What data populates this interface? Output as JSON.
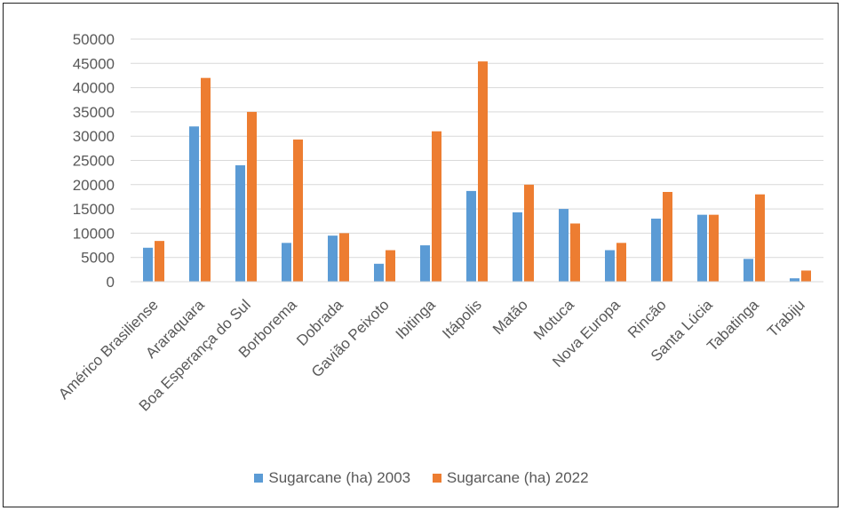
{
  "chart_data": {
    "type": "bar",
    "title": "",
    "xlabel": "",
    "ylabel": "",
    "ylim": [
      0,
      50000
    ],
    "yticks": [
      0,
      5000,
      10000,
      15000,
      20000,
      25000,
      30000,
      35000,
      40000,
      45000,
      50000
    ],
    "grid": true,
    "legend_position": "bottom",
    "categories": [
      "Américo Brasiliense",
      "Araraquara",
      "Boa Esperança do Sul",
      "Borborema",
      "Dobrada",
      "Gavião Peixoto",
      "Ibitinga",
      "Itápolis",
      "Matão",
      "Motuca",
      "Nova Europa",
      "Rincão",
      "Santa Lúcia",
      "Tabatinga",
      "Trabiju"
    ],
    "series": [
      {
        "name": "Sugarcane (ha) 2003",
        "color": "#5B9BD5",
        "values": [
          7000,
          32000,
          24000,
          8000,
          9500,
          3700,
          7500,
          18700,
          14300,
          15000,
          6500,
          13000,
          13800,
          4700,
          700
        ]
      },
      {
        "name": "Sugarcane (ha) 2022",
        "color": "#ED7D31",
        "values": [
          8400,
          42000,
          35000,
          29300,
          10000,
          6500,
          31000,
          45400,
          20000,
          12000,
          8000,
          18500,
          13800,
          18000,
          2300
        ]
      }
    ]
  }
}
